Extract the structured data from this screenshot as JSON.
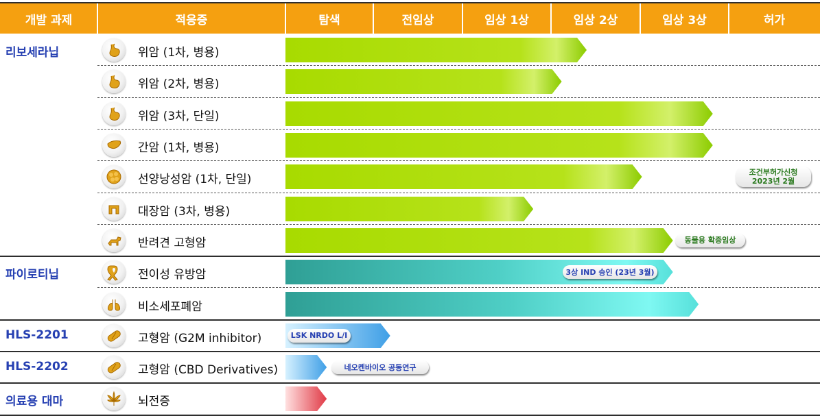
{
  "header": {
    "project_col": "개발 과제",
    "indication_col": "적응증",
    "stages": [
      "탐색",
      "전임상",
      "임상 1상",
      "임상 2상",
      "임상 3상",
      "허가"
    ]
  },
  "colors": {
    "header_bg": "#f5a010",
    "project_text": "#2640b2",
    "rivoceranib_bar": [
      "#a8db00",
      "#c9ec4a",
      "#8ccc00"
    ],
    "pyrotinib_bar": [
      "#2f9f95",
      "#6ff5ef",
      "#56e0da"
    ],
    "blue_bar": [
      "#c6ebff",
      "#4aa8e8"
    ],
    "red_bar": [
      "#ffd3d3",
      "#e03a46"
    ],
    "note_green": "#2b7a1f",
    "note_blue": "#2640b2"
  },
  "chart_data": {
    "type": "bar",
    "orientation": "horizontal",
    "value_scale": "development stage columns (0 = start of 탐색, 1 = end of 탐색 ... 6 = end of 허가)",
    "categories_x": [
      "탐색",
      "전임상",
      "임상 1상",
      "임상 2상",
      "임상 3상",
      "허가"
    ],
    "rows": [
      {
        "project": "리보세라닙",
        "indication": "위암 (1차, 병용)",
        "icon": "stomach-icon",
        "progress": 3.4,
        "color": "green"
      },
      {
        "project": "",
        "indication": "위암 (2차, 병용)",
        "icon": "stomach-icon",
        "progress": 3.12,
        "color": "green"
      },
      {
        "project": "",
        "indication": "위암 (3차, 단일)",
        "icon": "stomach-icon",
        "progress": 4.82,
        "color": "green"
      },
      {
        "project": "",
        "indication": "간암 (1차, 병용)",
        "icon": "liver-icon",
        "progress": 4.82,
        "color": "green"
      },
      {
        "project": "",
        "indication": "선양낭성암 (1차, 단일)",
        "icon": "gland-icon",
        "progress": 4.02,
        "color": "green",
        "note": {
          "text": "조건부허가신청\n2023년 2월",
          "tone": "green"
        }
      },
      {
        "project": "",
        "indication": "대장암 (3차, 병용)",
        "icon": "intestine-icon",
        "progress": 2.8,
        "color": "green"
      },
      {
        "project": "",
        "indication": "반려견 고형암",
        "icon": "dog-icon",
        "progress": 4.37,
        "color": "green",
        "note": {
          "text": "동물용 확증임상",
          "tone": "green"
        }
      },
      {
        "project": "파이로티닙",
        "indication": "전이성 유방암",
        "icon": "ribbon-icon",
        "progress": 4.37,
        "color": "teal",
        "note": {
          "text": "3상 IND 승인 (23년 3월)",
          "tone": "blue"
        }
      },
      {
        "project": "",
        "indication": "비소세포폐암",
        "icon": "lungs-icon",
        "progress": 4.66,
        "color": "teal"
      },
      {
        "project": "HLS-2201",
        "indication": "고형암 (G2M inhibitor)",
        "icon": "pill-icon",
        "progress": 1.19,
        "color": "blue",
        "note": {
          "text": "LSK NRDO L/I",
          "tone": "blue"
        }
      },
      {
        "project": "HLS-2202",
        "indication": "고형암 (CBD Derivatives)",
        "icon": "pill-icon",
        "progress": 0.47,
        "color": "blue",
        "note": {
          "text": "네오켄바이오 공동연구",
          "tone": "blue"
        }
      },
      {
        "project": "의료용 대마",
        "indication": "뇌전증",
        "icon": "cannabis-icon",
        "progress": 0.47,
        "color": "red"
      }
    ]
  }
}
